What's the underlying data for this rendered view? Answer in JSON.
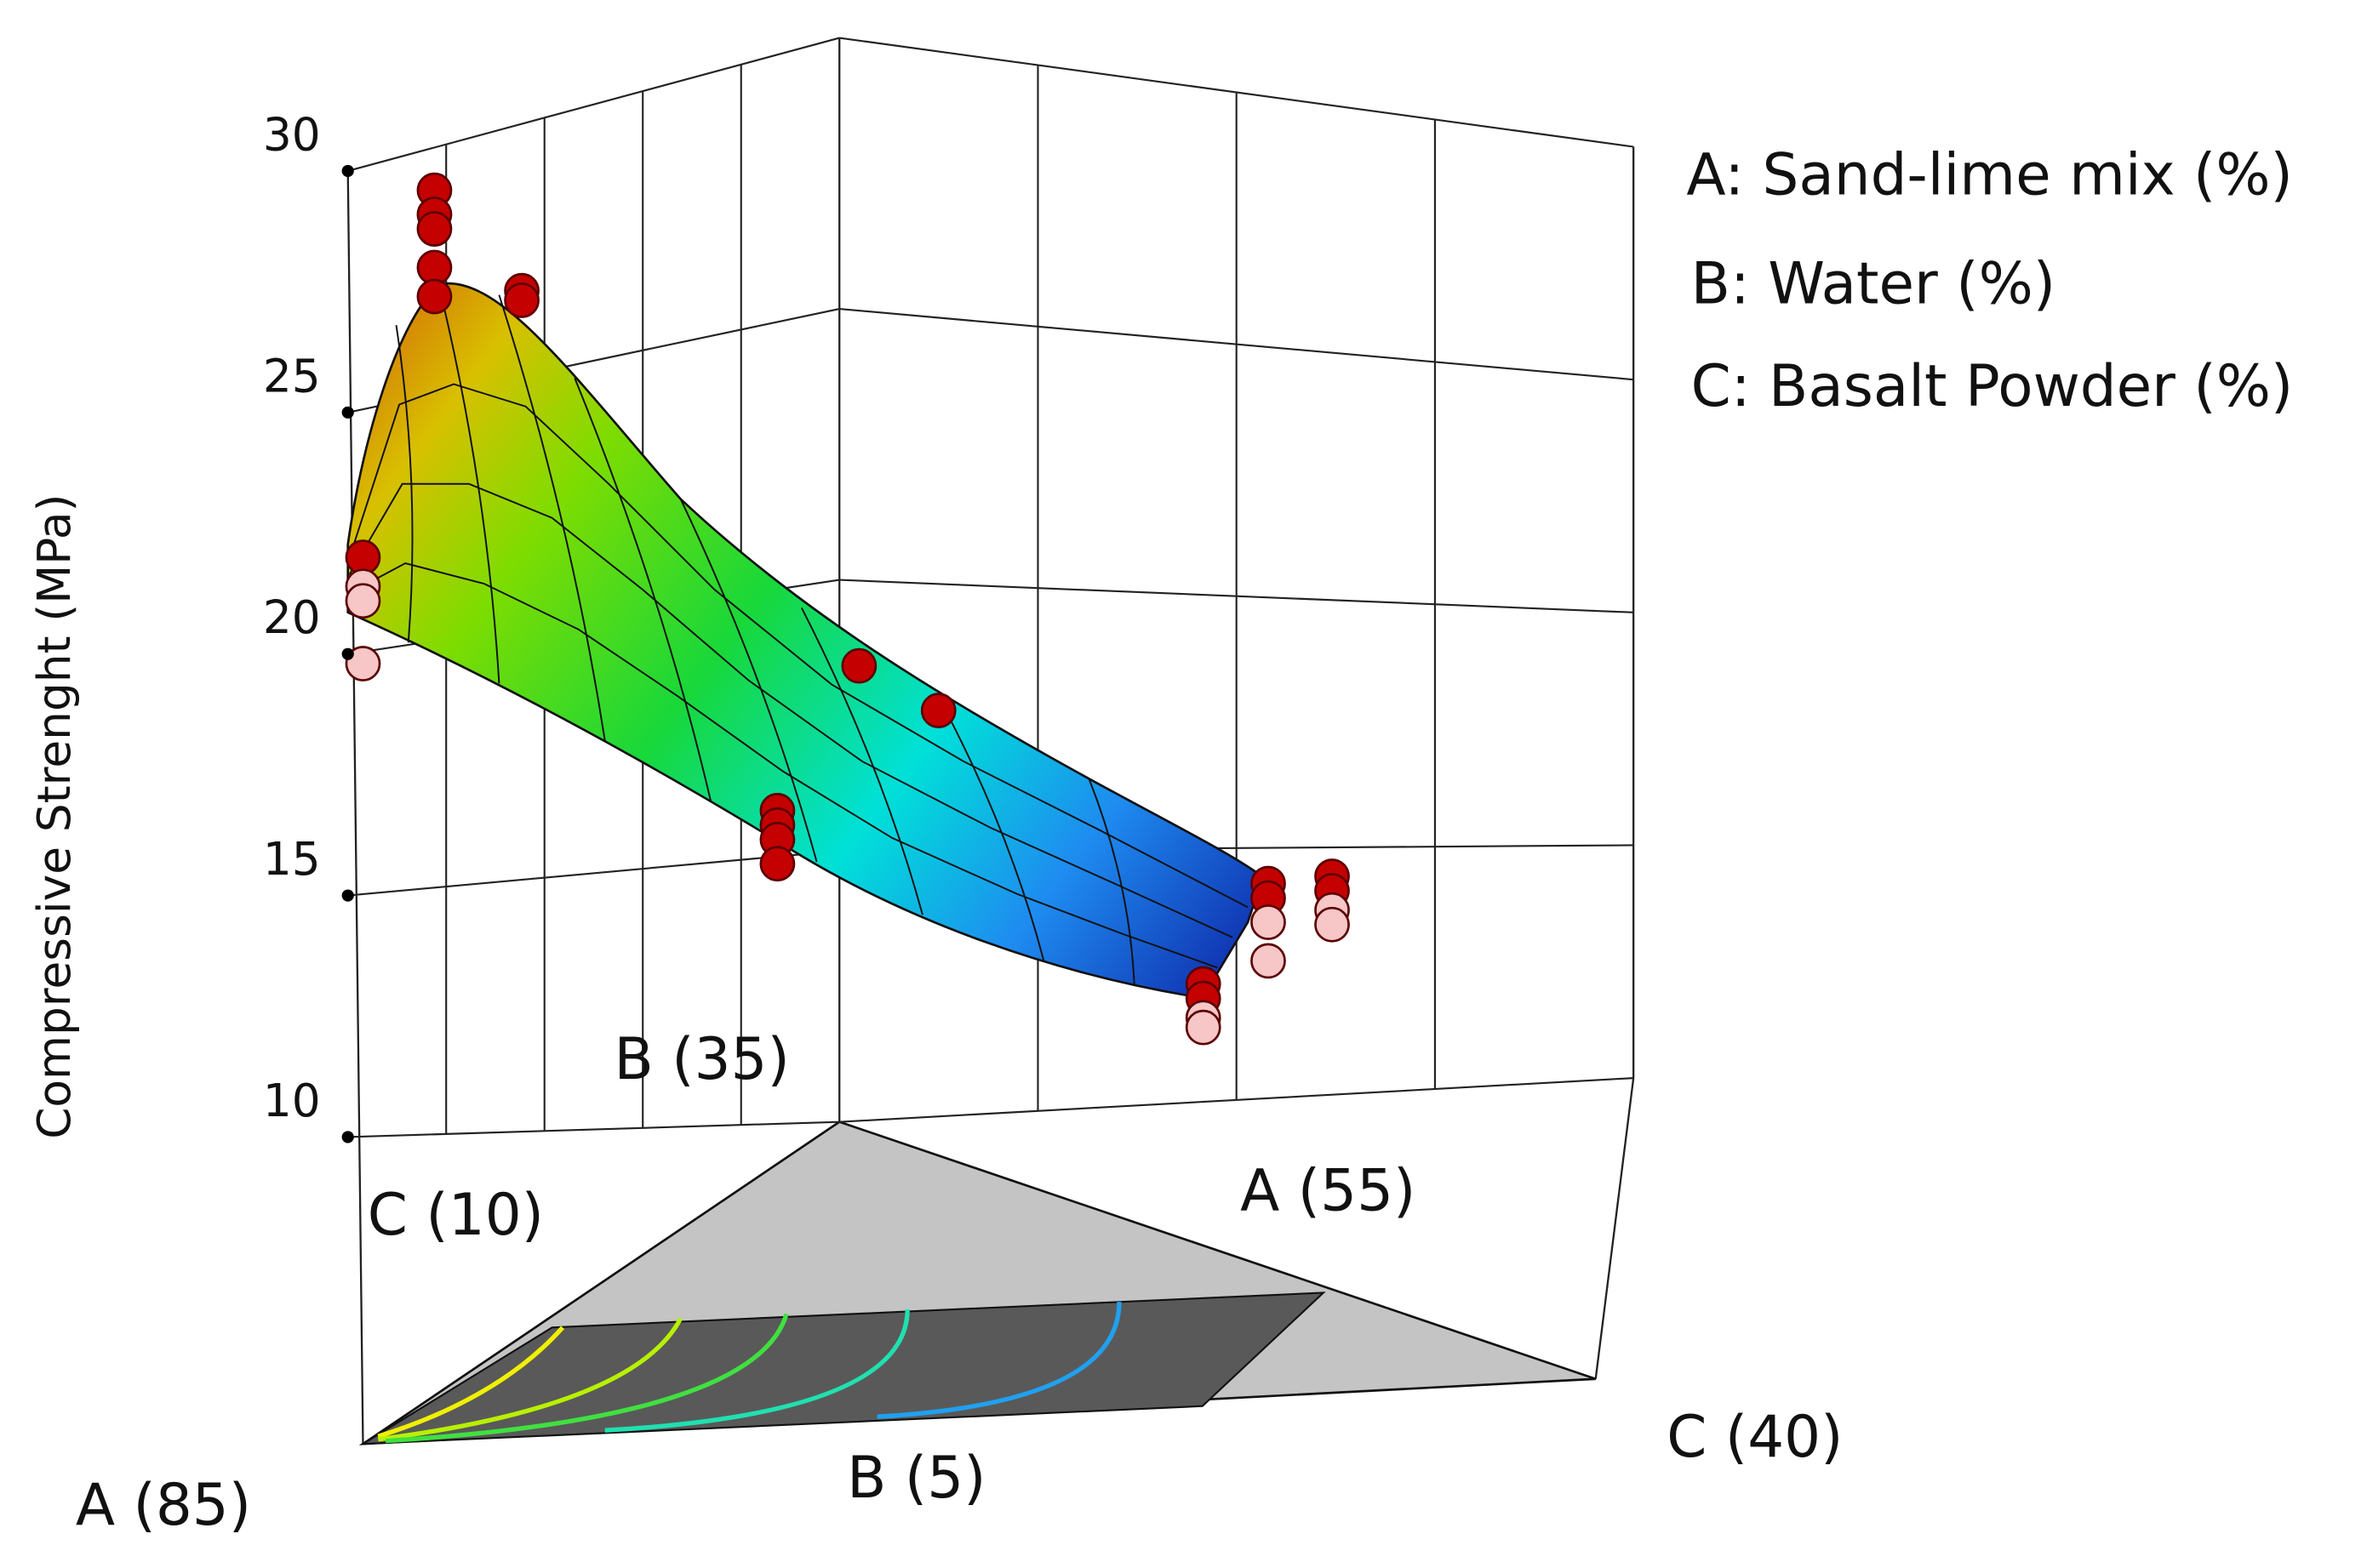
{
  "chart_data": {
    "type": "mixture-surface-3d",
    "z_label": "Compressive Strenght (MPa)",
    "zlim": [
      10,
      30
    ],
    "zticks": [
      10,
      15,
      20,
      25,
      30
    ],
    "alim": [
      55,
      85
    ],
    "blim": [
      5,
      35
    ],
    "clim": [
      10,
      40
    ],
    "components": [
      "A: Sand-lime mix (%)",
      "B: Water (%)",
      "C: Basalt Powder (%)"
    ],
    "vertex_labels": [
      "A (85)",
      "B (5)",
      "C (40)",
      "C (10)",
      "B (35)",
      "A (55)"
    ],
    "points": {
      "A": [
        85,
        85,
        85,
        85,
        80.5,
        80.5,
        80.5,
        80.5,
        80.5,
        75,
        75,
        66.3,
        65.9,
        74.3,
        74.3,
        74.3,
        74.3,
        63.2,
        63.2,
        63.2,
        63.2,
        60.7,
        60.7,
        60.7,
        60.7,
        58.9,
        58.9,
        58.9,
        58.9
      ],
      "B": [
        5,
        5,
        5,
        5,
        9.5,
        9.5,
        9.5,
        9.5,
        9.5,
        15,
        15,
        15.8,
        13.3,
        6,
        6,
        6,
        6,
        7.2,
        7.2,
        7.2,
        7.2,
        8.7,
        8.7,
        8.7,
        8.7,
        9.1,
        9.1,
        9.1,
        9.1
      ],
      "C": [
        10,
        10,
        10,
        10,
        10,
        10,
        10,
        10,
        10,
        10,
        10,
        17.9,
        20.8,
        19.7,
        19.7,
        19.7,
        19.7,
        29.6,
        29.6,
        29.6,
        29.6,
        30.6,
        30.6,
        30.6,
        30.6,
        32,
        32,
        32,
        32
      ],
      "z": [
        22.0,
        21.4,
        21.1,
        19.8,
        28.6,
        28.1,
        27.8,
        27.0,
        26.4,
        25.3,
        25.1,
        17.0,
        16.5,
        16.1,
        15.8,
        15.5,
        15.0,
        11.8,
        11.5,
        11.1,
        10.9,
        13.5,
        13.2,
        12.7,
        11.9,
        13.5,
        13.2,
        12.8,
        12.5
      ],
      "colors": [
        "#c40000",
        "#f7c6c6",
        "#f7c6c6",
        "#f7c6c6",
        "#c40000",
        "#c40000",
        "#c40000",
        "#c40000",
        "#c40000",
        "#c40000",
        "#c40000",
        "#c40000",
        "#c40000",
        "#c40000",
        "#c40000",
        "#c40000",
        "#c40000",
        "#c40000",
        "#c40000",
        "#f7c6c6",
        "#f7c6c6",
        "#c40000",
        "#c40000",
        "#f7c6c6",
        "#f7c6c6",
        "#c40000",
        "#c40000",
        "#f7c6c6",
        "#f7c6c6"
      ]
    }
  }
}
